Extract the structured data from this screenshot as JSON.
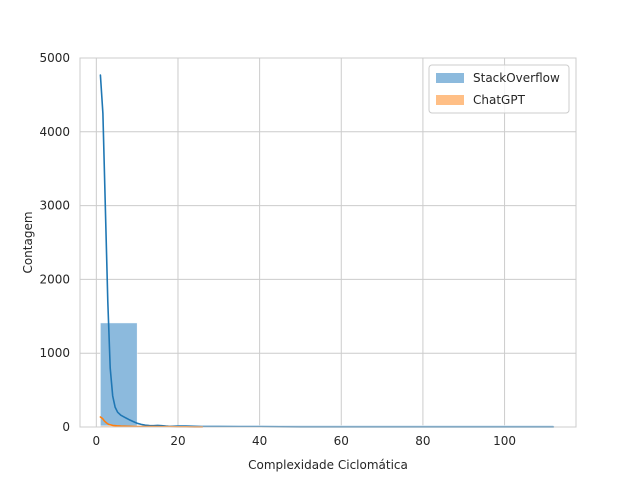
{
  "chart_data": {
    "type": "bar",
    "xlabel": "Complexidade Ciclomática",
    "ylabel": "Contagem",
    "xlim": [
      -4,
      117.5
    ],
    "ylim": [
      0,
      5000
    ],
    "x_ticks": [
      0,
      20,
      40,
      60,
      80,
      100
    ],
    "y_ticks": [
      0,
      1000,
      2000,
      3000,
      4000,
      5000
    ],
    "grid": true,
    "legend_position": "top-right",
    "histogram_bins": [
      {
        "series": "StackOverflow",
        "x0": 1,
        "x1": 10,
        "count": 1410
      },
      {
        "series": "StackOverflow",
        "x0": 10,
        "x1": 112,
        "count": 20
      },
      {
        "series": "ChatGPT",
        "x0": 1,
        "x1": 26,
        "count": 15
      }
    ],
    "series": [
      {
        "name": "StackOverflow",
        "color": "#1f77b4",
        "fill_color": "#8cbadd",
        "kde_x": [
          1,
          1.6,
          2.2,
          2.8,
          3.4,
          4,
          4.6,
          5.2,
          6,
          7,
          8,
          9,
          10,
          11,
          12,
          13,
          14,
          15,
          16,
          17,
          18,
          20,
          22,
          24,
          26,
          30,
          35,
          40,
          45,
          50,
          60,
          70,
          80,
          90,
          100,
          112
        ],
        "kde_y": [
          4770,
          4250,
          3000,
          1700,
          800,
          420,
          270,
          200,
          160,
          130,
          100,
          75,
          50,
          35,
          25,
          20,
          18,
          22,
          18,
          12,
          8,
          12,
          14,
          10,
          7,
          5,
          4,
          4,
          3,
          2,
          2,
          1,
          1,
          1,
          1,
          1
        ]
      },
      {
        "name": "ChatGPT",
        "color": "#ff7f0e",
        "fill_color": "#ffbf86",
        "kde_x": [
          1,
          1.5,
          2,
          2.5,
          3,
          4,
          5,
          6,
          8,
          10,
          12,
          14,
          16,
          18,
          20,
          22,
          24,
          26
        ],
        "kde_y": [
          135,
          115,
          80,
          55,
          35,
          22,
          16,
          12,
          9,
          7,
          6,
          5,
          4,
          4,
          3,
          3,
          2,
          1
        ]
      }
    ]
  }
}
